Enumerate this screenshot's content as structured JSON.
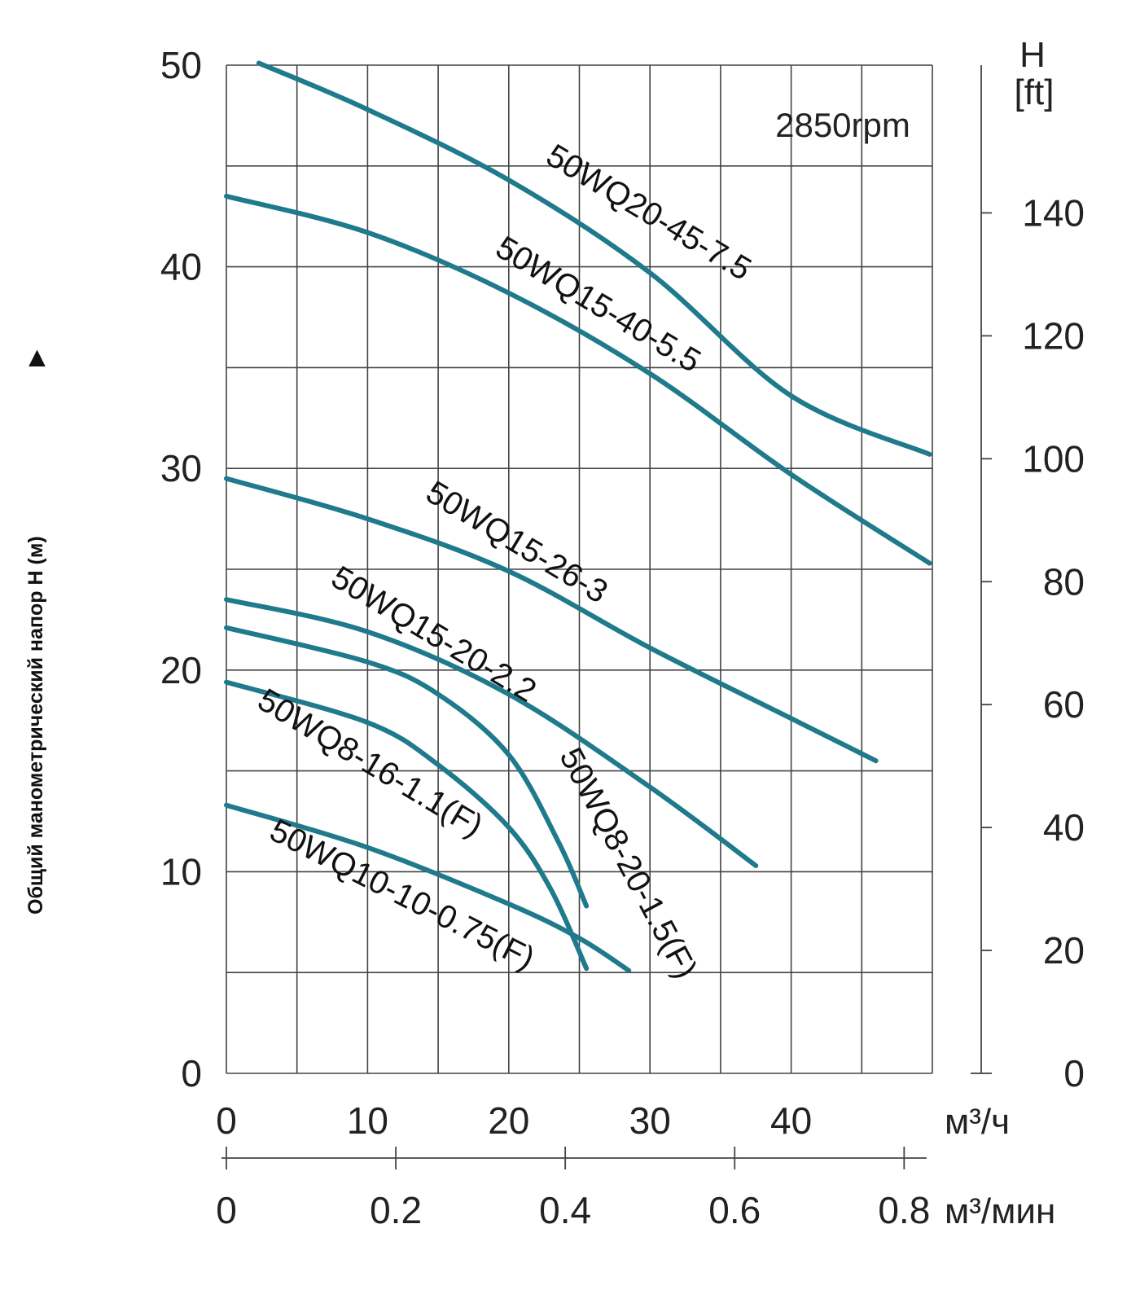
{
  "chart_data": {
    "type": "line",
    "annotation": "2850rpm",
    "y_label": "Общий манометрический напор H (м)",
    "y_right_label_line1": "H",
    "y_right_label_line2": "[ft]",
    "x_unit_primary": "м³/ч",
    "x_unit_secondary": "м³/мин",
    "x_ticks": [
      "0",
      "10",
      "20",
      "30",
      "40"
    ],
    "x2_ticks": [
      "0",
      "0.2",
      "0.4",
      "0.6",
      "0.8"
    ],
    "y_ticks": [
      "0",
      "10",
      "20",
      "30",
      "40",
      "50"
    ],
    "y_right_ticks": [
      "0",
      "20",
      "40",
      "60",
      "80",
      "100",
      "120",
      "140"
    ],
    "xlim": [
      0,
      50
    ],
    "ylim": [
      0,
      50
    ],
    "grid": true,
    "line_color": "#1f7a8c",
    "series": [
      {
        "name": "50WQ20-45-7.5",
        "points": [
          [
            2.3,
            50.1
          ],
          [
            10,
            47.8
          ],
          [
            20,
            44.3
          ],
          [
            30,
            39.7
          ],
          [
            40,
            33.6
          ],
          [
            49.8,
            30.7
          ]
        ]
      },
      {
        "name": "50WQ15-40-5.5",
        "points": [
          [
            0,
            43.5
          ],
          [
            10,
            41.7
          ],
          [
            20,
            38.7
          ],
          [
            30,
            34.7
          ],
          [
            40,
            29.7
          ],
          [
            49.8,
            25.3
          ]
        ]
      },
      {
        "name": "50WQ15-26-3",
        "points": [
          [
            0,
            29.5
          ],
          [
            10,
            27.5
          ],
          [
            20,
            24.9
          ],
          [
            30,
            21.1
          ],
          [
            40,
            17.6
          ],
          [
            46,
            15.5
          ]
        ]
      },
      {
        "name": "50WQ15-20-2.2",
        "points": [
          [
            0,
            23.5
          ],
          [
            10,
            21.9
          ],
          [
            20,
            18.8
          ],
          [
            30,
            14.2
          ],
          [
            37.5,
            10.3
          ]
        ]
      },
      {
        "name": "50WQ8-20-1.5(F)",
        "points": [
          [
            0,
            22.1
          ],
          [
            10,
            20.4
          ],
          [
            15,
            18.8
          ],
          [
            20,
            15.8
          ],
          [
            23.5,
            11.5
          ],
          [
            25.5,
            8.3
          ]
        ]
      },
      {
        "name": "50WQ8-16-1.1(F)",
        "points": [
          [
            0,
            19.4
          ],
          [
            10,
            17.4
          ],
          [
            15,
            15.3
          ],
          [
            20,
            12.2
          ],
          [
            23,
            9.1
          ],
          [
            25.5,
            5.2
          ]
        ]
      },
      {
        "name": "50WQ10-10-0.75(F)",
        "points": [
          [
            0,
            13.3
          ],
          [
            10,
            11.2
          ],
          [
            20,
            8.4
          ],
          [
            25,
            6.7
          ],
          [
            28.5,
            5.1
          ]
        ]
      }
    ],
    "labels": [
      "50WQ20-45-7.5",
      "50WQ15-40-5.5",
      "50WQ15-26-3",
      "50WQ15-20-2.2",
      "50WQ8-20-1.5(F)",
      "50WQ8-16-1.1(F)",
      "50WQ10-10-0.75(F)"
    ]
  }
}
